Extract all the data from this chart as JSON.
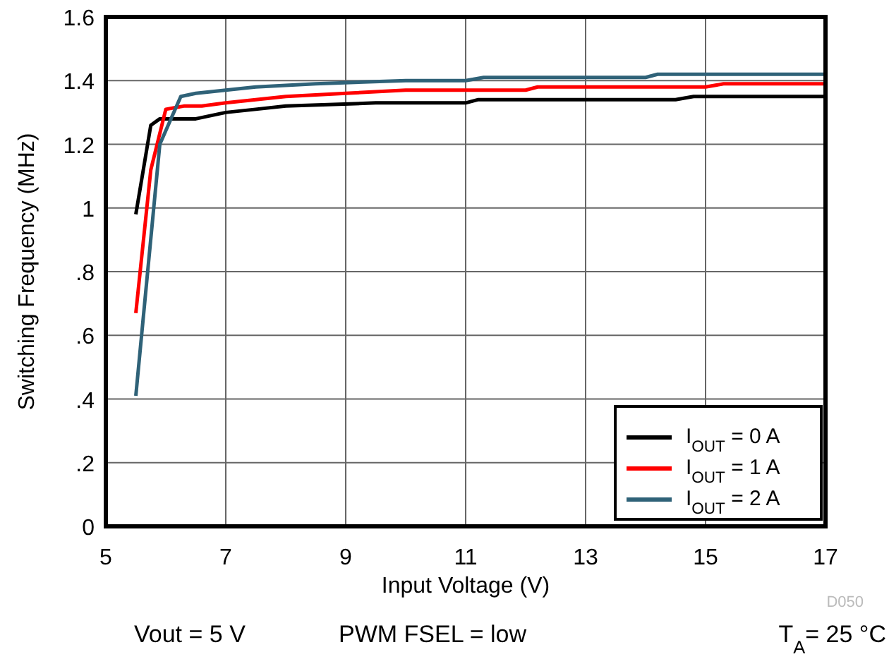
{
  "chart_data": {
    "type": "line",
    "xlabel": "Input Voltage (V)",
    "ylabel": "Switching Frequency (MHz)",
    "xlim": [
      5,
      17
    ],
    "xticks": [
      5,
      7,
      9,
      11,
      13,
      15,
      17
    ],
    "ylim": [
      0,
      1.6
    ],
    "yticks": [
      0,
      {
        "value": 0.2,
        "label": ".2"
      },
      {
        "value": 0.4,
        "label": ".4"
      },
      {
        "value": 0.6,
        "label": ".6"
      },
      {
        "value": 0.8,
        "label": ".8"
      },
      1,
      1.2,
      1.4,
      1.6
    ],
    "grid": true,
    "legend": "bottom right",
    "line_style": "solid",
    "annotations": [
      "D050",
      "Vout = 5 V",
      "PWM FSEL = low",
      "T$_{A}$= 25 °C"
    ],
    "series": [
      {
        "name": "I$_{OUT}$ = 0 A",
        "color": "#000000",
        "x": [
          5.5,
          5.75,
          5.9,
          6.5,
          7,
          7.5,
          8,
          9.5,
          11,
          11.2,
          14.5,
          14.8,
          17
        ],
        "values": [
          0.98,
          1.26,
          1.28,
          1.28,
          1.3,
          1.31,
          1.32,
          1.33,
          1.33,
          1.34,
          1.34,
          1.35,
          1.35
        ]
      },
      {
        "name": "I$_{OUT}$ = 1 A",
        "color": "#ff0000",
        "x": [
          5.5,
          5.75,
          6,
          6.3,
          6.6,
          7,
          7.5,
          8,
          9,
          10,
          12,
          12.2,
          15,
          15.3,
          17
        ],
        "values": [
          0.67,
          1.12,
          1.31,
          1.32,
          1.32,
          1.33,
          1.34,
          1.35,
          1.36,
          1.37,
          1.37,
          1.38,
          1.38,
          1.39,
          1.39
        ]
      },
      {
        "name": "I$_{OUT}$ = 2 A",
        "color": "#2f6278",
        "x": [
          5.5,
          5.9,
          6.25,
          6.5,
          7,
          7.5,
          8.5,
          10,
          11,
          11.3,
          14,
          14.2,
          17
        ],
        "values": [
          0.41,
          1.2,
          1.35,
          1.36,
          1.37,
          1.38,
          1.39,
          1.4,
          1.4,
          1.41,
          1.41,
          1.42,
          1.42
        ]
      }
    ]
  }
}
